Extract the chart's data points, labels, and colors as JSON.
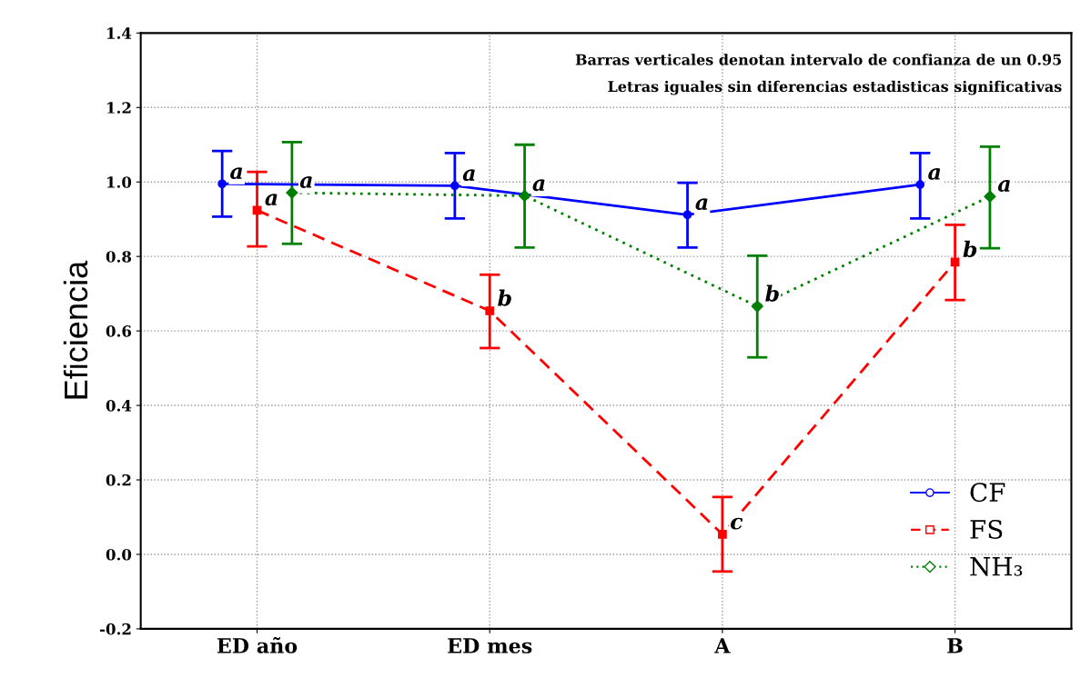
{
  "chart_data": {
    "type": "line",
    "ylabel": "Eficiencia",
    "categories": [
      "ED año",
      "ED mes",
      "A",
      "B"
    ],
    "series": [
      {
        "name": "CF",
        "color": "#0000ff",
        "marker": "circle",
        "line_style": "solid",
        "values": [
          0.995,
          0.99,
          0.912,
          0.993
        ],
        "errors": [
          [
            0.907,
            1.083
          ],
          [
            0.902,
            1.078
          ],
          [
            0.824,
            0.998
          ],
          [
            0.902,
            1.078
          ]
        ],
        "value_labels": [
          "a",
          "a",
          "a",
          "a"
        ]
      },
      {
        "name": "FS",
        "color": "#ff0000",
        "marker": "square",
        "line_style": "dashed",
        "values": [
          0.924,
          0.654,
          0.054,
          0.785
        ],
        "errors": [
          [
            0.827,
            1.027
          ],
          [
            0.554,
            0.751
          ],
          [
            -0.046,
            0.154
          ],
          [
            0.683,
            0.885
          ]
        ],
        "value_labels": [
          "a",
          "b",
          "c",
          "b"
        ]
      },
      {
        "name": "NH₃",
        "color": "#008000",
        "marker": "diamond",
        "line_style": "dotted",
        "values": [
          0.971,
          0.963,
          0.666,
          0.961
        ],
        "errors": [
          [
            0.834,
            1.107
          ],
          [
            0.824,
            1.1
          ],
          [
            0.529,
            0.802
          ],
          [
            0.822,
            1.095
          ]
        ],
        "value_labels": [
          "a",
          "a",
          "b",
          "a"
        ]
      }
    ],
    "ylim": [
      -0.2,
      1.4
    ],
    "yticks": [
      {
        "value": -0.2,
        "label": "-0.2"
      },
      {
        "value": 0,
        "label": "0.0"
      },
      0.2,
      0.4,
      0.6,
      0.8,
      {
        "value": 1,
        "label": "1.0"
      },
      1.2,
      1.4
    ],
    "grid": true,
    "legend": "bottom right",
    "annotations": [
      "Barras verticales denotan intervalo de confianza de un 0.95",
      "Letras iguales sin diferencias estadisticas significativas"
    ]
  }
}
